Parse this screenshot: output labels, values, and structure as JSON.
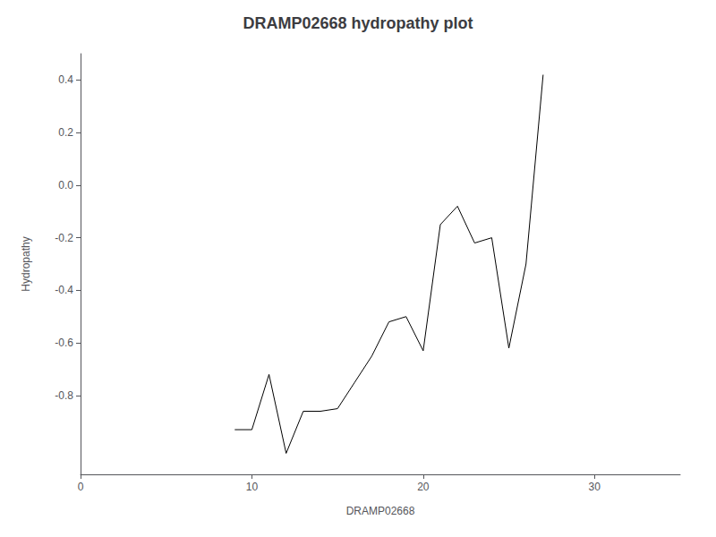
{
  "chart_data": {
    "type": "line",
    "title": "DRAMP02668 hydropathy plot",
    "xlabel": "DRAMP02668",
    "ylabel": "Hydropathy",
    "x": [
      9,
      10,
      11,
      12,
      13,
      14,
      15,
      16,
      17,
      18,
      19,
      20,
      21,
      22,
      23,
      24,
      25,
      26,
      27
    ],
    "values": [
      -0.93,
      -0.93,
      -0.72,
      -1.02,
      -0.86,
      -0.86,
      -0.85,
      -0.75,
      -0.65,
      -0.52,
      -0.5,
      -0.63,
      -0.15,
      -0.08,
      -0.22,
      -0.2,
      -0.62,
      -0.3,
      0.42
    ],
    "color": "#000000",
    "xlim": [
      0,
      35
    ],
    "ylim": [
      -1.1,
      0.5
    ],
    "xticks": [
      0,
      10,
      20,
      30
    ],
    "yticks": [
      -0.8,
      -0.6,
      -0.4,
      -0.2,
      {
        "value": 0,
        "label": "0.0"
      },
      0.2,
      0.4
    ],
    "grid": false
  }
}
